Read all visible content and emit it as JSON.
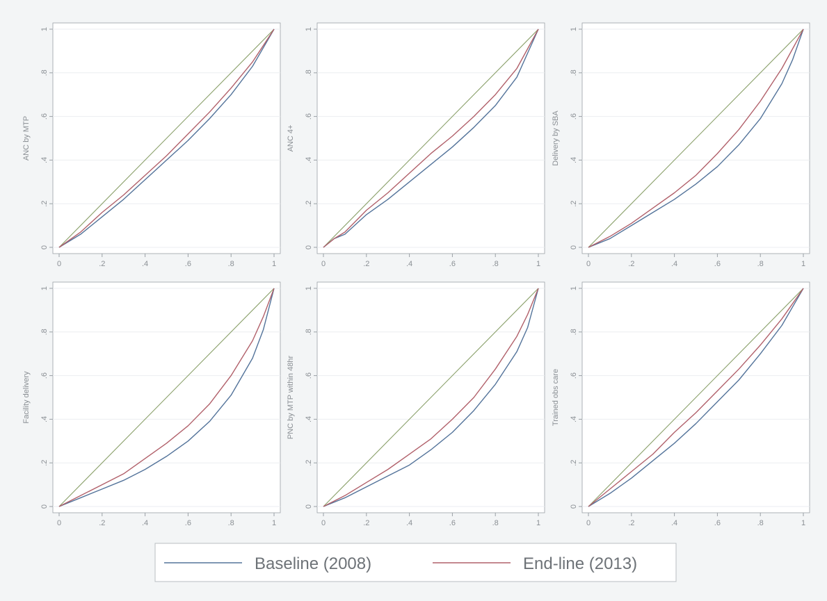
{
  "colors": {
    "baseline": "#53739a",
    "endline": "#b1606a",
    "equality": "#8aa06a",
    "grid": "#ebeef0",
    "axis": "#9aa0a5",
    "panel_bg": "#ffffff"
  },
  "legend": {
    "baseline_label": "Baseline (2008)",
    "endline_label": "End-line (2013)"
  },
  "chart_data": [
    {
      "type": "line",
      "ylabel": "ANC by MTP",
      "xlim": [
        0,
        1
      ],
      "ylim": [
        0,
        1
      ],
      "x_ticks": [
        "0",
        ".2",
        ".4",
        ".6",
        ".8",
        "1"
      ],
      "y_ticks": [
        "0",
        ".2",
        ".4",
        ".6",
        ".8",
        "1"
      ],
      "grid": true,
      "series": [
        {
          "name": "Baseline (2008)",
          "x": [
            0,
            0.1,
            0.2,
            0.3,
            0.4,
            0.5,
            0.6,
            0.7,
            0.8,
            0.9,
            1
          ],
          "y": [
            0,
            0.06,
            0.14,
            0.22,
            0.31,
            0.4,
            0.49,
            0.59,
            0.7,
            0.83,
            1
          ]
        },
        {
          "name": "End-line (2013)",
          "x": [
            0,
            0.1,
            0.2,
            0.3,
            0.4,
            0.5,
            0.6,
            0.7,
            0.8,
            0.9,
            1
          ],
          "y": [
            0,
            0.07,
            0.16,
            0.24,
            0.33,
            0.42,
            0.52,
            0.62,
            0.73,
            0.85,
            1
          ]
        },
        {
          "x": [
            0,
            1
          ],
          "y": [
            0,
            1
          ]
        }
      ]
    },
    {
      "type": "line",
      "ylabel": "ANC 4+",
      "xlim": [
        0,
        1
      ],
      "ylim": [
        0,
        1
      ],
      "x_ticks": [
        "0",
        ".2",
        ".4",
        ".6",
        ".8",
        "1"
      ],
      "y_ticks": [
        "0",
        ".2",
        ".4",
        ".6",
        ".8",
        "1"
      ],
      "grid": true,
      "series": [
        {
          "name": "Baseline (2008)",
          "x": [
            0,
            0.05,
            0.1,
            0.2,
            0.3,
            0.4,
            0.5,
            0.6,
            0.7,
            0.8,
            0.9,
            1
          ],
          "y": [
            0,
            0.04,
            0.06,
            0.15,
            0.22,
            0.3,
            0.38,
            0.46,
            0.55,
            0.65,
            0.78,
            1
          ]
        },
        {
          "name": "End-line (2013)",
          "x": [
            0,
            0.05,
            0.1,
            0.2,
            0.3,
            0.4,
            0.5,
            0.6,
            0.7,
            0.8,
            0.9,
            1
          ],
          "y": [
            0,
            0.04,
            0.07,
            0.17,
            0.25,
            0.34,
            0.43,
            0.51,
            0.6,
            0.7,
            0.82,
            1
          ]
        },
        {
          "x": [
            0,
            1
          ],
          "y": [
            0,
            1
          ]
        }
      ]
    },
    {
      "type": "line",
      "ylabel": "Delivery by SBA",
      "xlim": [
        0,
        1
      ],
      "ylim": [
        0,
        1
      ],
      "x_ticks": [
        "0",
        ".2",
        ".4",
        ".6",
        ".8",
        "1"
      ],
      "y_ticks": [
        "0",
        ".2",
        ".4",
        ".6",
        ".8",
        "1"
      ],
      "grid": true,
      "series": [
        {
          "name": "Baseline (2008)",
          "x": [
            0,
            0.1,
            0.2,
            0.3,
            0.4,
            0.5,
            0.6,
            0.7,
            0.8,
            0.9,
            0.95,
            1
          ],
          "y": [
            0,
            0.04,
            0.1,
            0.16,
            0.22,
            0.29,
            0.37,
            0.47,
            0.59,
            0.75,
            0.86,
            1
          ]
        },
        {
          "name": "End-line (2013)",
          "x": [
            0,
            0.1,
            0.2,
            0.3,
            0.4,
            0.5,
            0.6,
            0.7,
            0.8,
            0.9,
            0.95,
            1
          ],
          "y": [
            0,
            0.05,
            0.11,
            0.18,
            0.25,
            0.33,
            0.43,
            0.54,
            0.67,
            0.82,
            0.91,
            1
          ]
        },
        {
          "x": [
            0,
            1
          ],
          "y": [
            0,
            1
          ]
        }
      ]
    },
    {
      "type": "line",
      "ylabel": "Facility delivery",
      "xlim": [
        0,
        1
      ],
      "ylim": [
        0,
        1
      ],
      "x_ticks": [
        "0",
        ".2",
        ".4",
        ".6",
        ".8",
        "1"
      ],
      "y_ticks": [
        "0",
        ".2",
        ".4",
        ".6",
        ".8",
        "1"
      ],
      "grid": true,
      "series": [
        {
          "name": "Baseline (2008)",
          "x": [
            0,
            0.1,
            0.2,
            0.3,
            0.4,
            0.5,
            0.6,
            0.7,
            0.8,
            0.9,
            0.95,
            1
          ],
          "y": [
            0,
            0.04,
            0.08,
            0.12,
            0.17,
            0.23,
            0.3,
            0.39,
            0.51,
            0.68,
            0.81,
            1
          ]
        },
        {
          "name": "End-line (2013)",
          "x": [
            0,
            0.1,
            0.2,
            0.3,
            0.4,
            0.5,
            0.6,
            0.7,
            0.8,
            0.9,
            0.95,
            1
          ],
          "y": [
            0,
            0.05,
            0.1,
            0.15,
            0.22,
            0.29,
            0.37,
            0.47,
            0.6,
            0.76,
            0.87,
            1
          ]
        },
        {
          "x": [
            0,
            1
          ],
          "y": [
            0,
            1
          ]
        }
      ]
    },
    {
      "type": "line",
      "ylabel": "PNC by MTP within 48hr",
      "xlim": [
        0,
        1
      ],
      "ylim": [
        0,
        1
      ],
      "x_ticks": [
        "0",
        ".2",
        ".4",
        ".6",
        ".8",
        "1"
      ],
      "y_ticks": [
        "0",
        ".2",
        ".4",
        ".6",
        ".8",
        "1"
      ],
      "grid": true,
      "series": [
        {
          "name": "Baseline (2008)",
          "x": [
            0,
            0.1,
            0.2,
            0.3,
            0.4,
            0.5,
            0.6,
            0.7,
            0.8,
            0.9,
            0.95,
            1
          ],
          "y": [
            0,
            0.04,
            0.09,
            0.14,
            0.19,
            0.26,
            0.34,
            0.44,
            0.56,
            0.71,
            0.82,
            1
          ]
        },
        {
          "name": "End-line (2013)",
          "x": [
            0,
            0.1,
            0.2,
            0.3,
            0.4,
            0.5,
            0.6,
            0.7,
            0.8,
            0.9,
            0.95,
            1
          ],
          "y": [
            0,
            0.05,
            0.11,
            0.17,
            0.24,
            0.31,
            0.4,
            0.5,
            0.63,
            0.78,
            0.88,
            1
          ]
        },
        {
          "x": [
            0,
            1
          ],
          "y": [
            0,
            1
          ]
        }
      ]
    },
    {
      "type": "line",
      "ylabel": "Trained obs care",
      "xlim": [
        0,
        1
      ],
      "ylim": [
        0,
        1
      ],
      "x_ticks": [
        "0",
        ".2",
        ".4",
        ".6",
        ".8",
        "1"
      ],
      "y_ticks": [
        "0",
        ".2",
        ".4",
        ".6",
        ".8",
        "1"
      ],
      "grid": true,
      "series": [
        {
          "name": "Baseline (2008)",
          "x": [
            0,
            0.1,
            0.2,
            0.3,
            0.4,
            0.5,
            0.6,
            0.7,
            0.8,
            0.9,
            1
          ],
          "y": [
            0,
            0.06,
            0.13,
            0.21,
            0.29,
            0.38,
            0.48,
            0.58,
            0.7,
            0.83,
            1
          ]
        },
        {
          "name": "End-line (2013)",
          "x": [
            0,
            0.1,
            0.2,
            0.3,
            0.4,
            0.5,
            0.6,
            0.7,
            0.8,
            0.9,
            1
          ],
          "y": [
            0,
            0.08,
            0.16,
            0.24,
            0.34,
            0.43,
            0.53,
            0.63,
            0.74,
            0.86,
            1
          ]
        },
        {
          "x": [
            0,
            1
          ],
          "y": [
            0,
            1
          ]
        }
      ]
    }
  ]
}
